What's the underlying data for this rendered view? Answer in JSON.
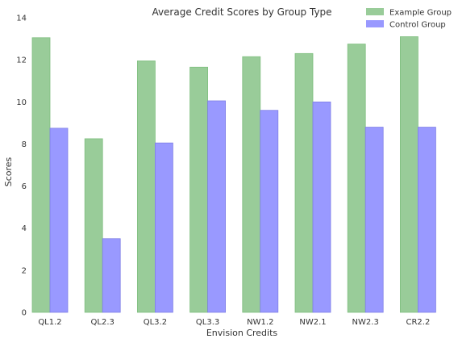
{
  "chart_data": {
    "type": "bar",
    "title": "Average Credit Scores by Group Type",
    "xlabel": "Envision Credits",
    "ylabel": "Scores",
    "categories": [
      "QL1.2",
      "QL2.3",
      "QL3.2",
      "QL3.3",
      "NW1.2",
      "NW2.1",
      "NW2.3",
      "CR2.2"
    ],
    "series": [
      {
        "name": "Example Group",
        "color": "#99cc99",
        "values": [
          13.05,
          8.25,
          11.95,
          11.65,
          12.15,
          12.3,
          12.75,
          13.1
        ]
      },
      {
        "name": "Control Group",
        "color": "#9999ff",
        "values": [
          8.75,
          3.5,
          8.05,
          10.05,
          9.6,
          10.0,
          8.8,
          8.8
        ]
      }
    ],
    "ylim": [
      0,
      14
    ],
    "yticks": [
      0,
      2,
      4,
      6,
      8,
      10,
      12,
      14
    ],
    "grid": false,
    "legend": "top-right"
  }
}
